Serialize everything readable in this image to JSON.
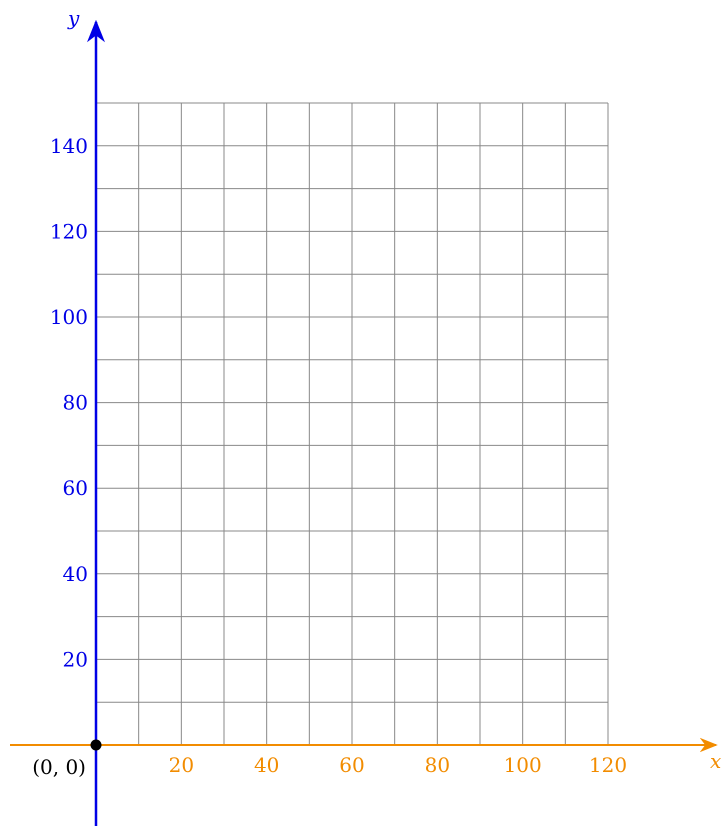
{
  "chart_data": {
    "type": "scatter",
    "title": "",
    "xlabel": "x",
    "ylabel": "y",
    "xlim": [
      0,
      120
    ],
    "ylim": [
      0,
      150
    ],
    "grid": true,
    "grid_x_step": 10,
    "grid_y_step": 10,
    "x_ticks": [
      20,
      40,
      60,
      80,
      100,
      120
    ],
    "y_ticks": [
      20,
      40,
      60,
      80,
      100,
      120,
      140
    ],
    "x_tick_labels": [
      "20",
      "40",
      "60",
      "80",
      "100",
      "120"
    ],
    "y_tick_labels": [
      "20",
      "40",
      "60",
      "80",
      "100",
      "120",
      "140"
    ],
    "points": [
      {
        "x": 0,
        "y": 0,
        "label": "(0, 0)"
      }
    ]
  },
  "colors": {
    "x_axis": "#f28c00",
    "y_axis": "#0000e6",
    "grid": "#888888",
    "point": "#000000"
  }
}
